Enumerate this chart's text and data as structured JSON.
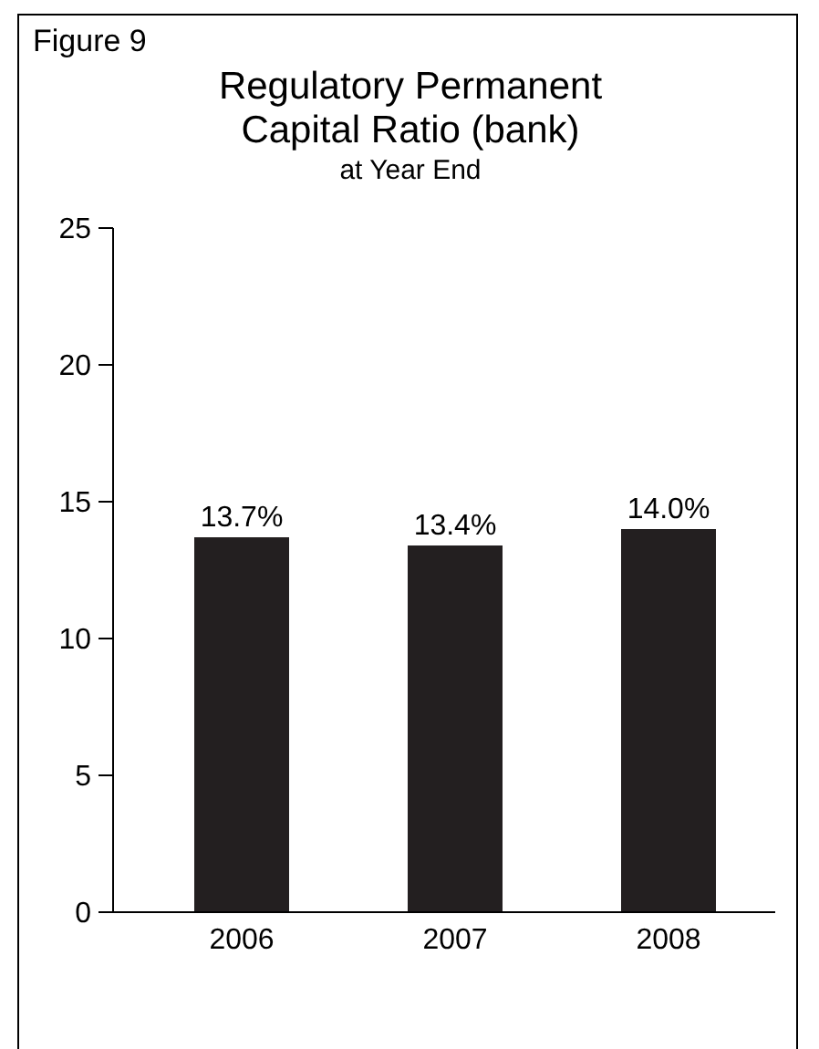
{
  "chart_data": {
    "type": "bar",
    "title": "Regulatory Permanent Capital Ratio (bank)",
    "subtitle": "at Year End",
    "annotations": [
      "Figure 9"
    ],
    "categories": [
      "2006",
      "2007",
      "2008"
    ],
    "values": [
      13.7,
      13.4,
      14.0
    ],
    "value_labels": [
      "13.7%",
      "13.4%",
      "14.0%"
    ],
    "color": "#231f20",
    "ylim": [
      0,
      25
    ],
    "yticks": [
      0,
      5,
      10,
      15,
      20,
      25
    ],
    "grid": false
  }
}
